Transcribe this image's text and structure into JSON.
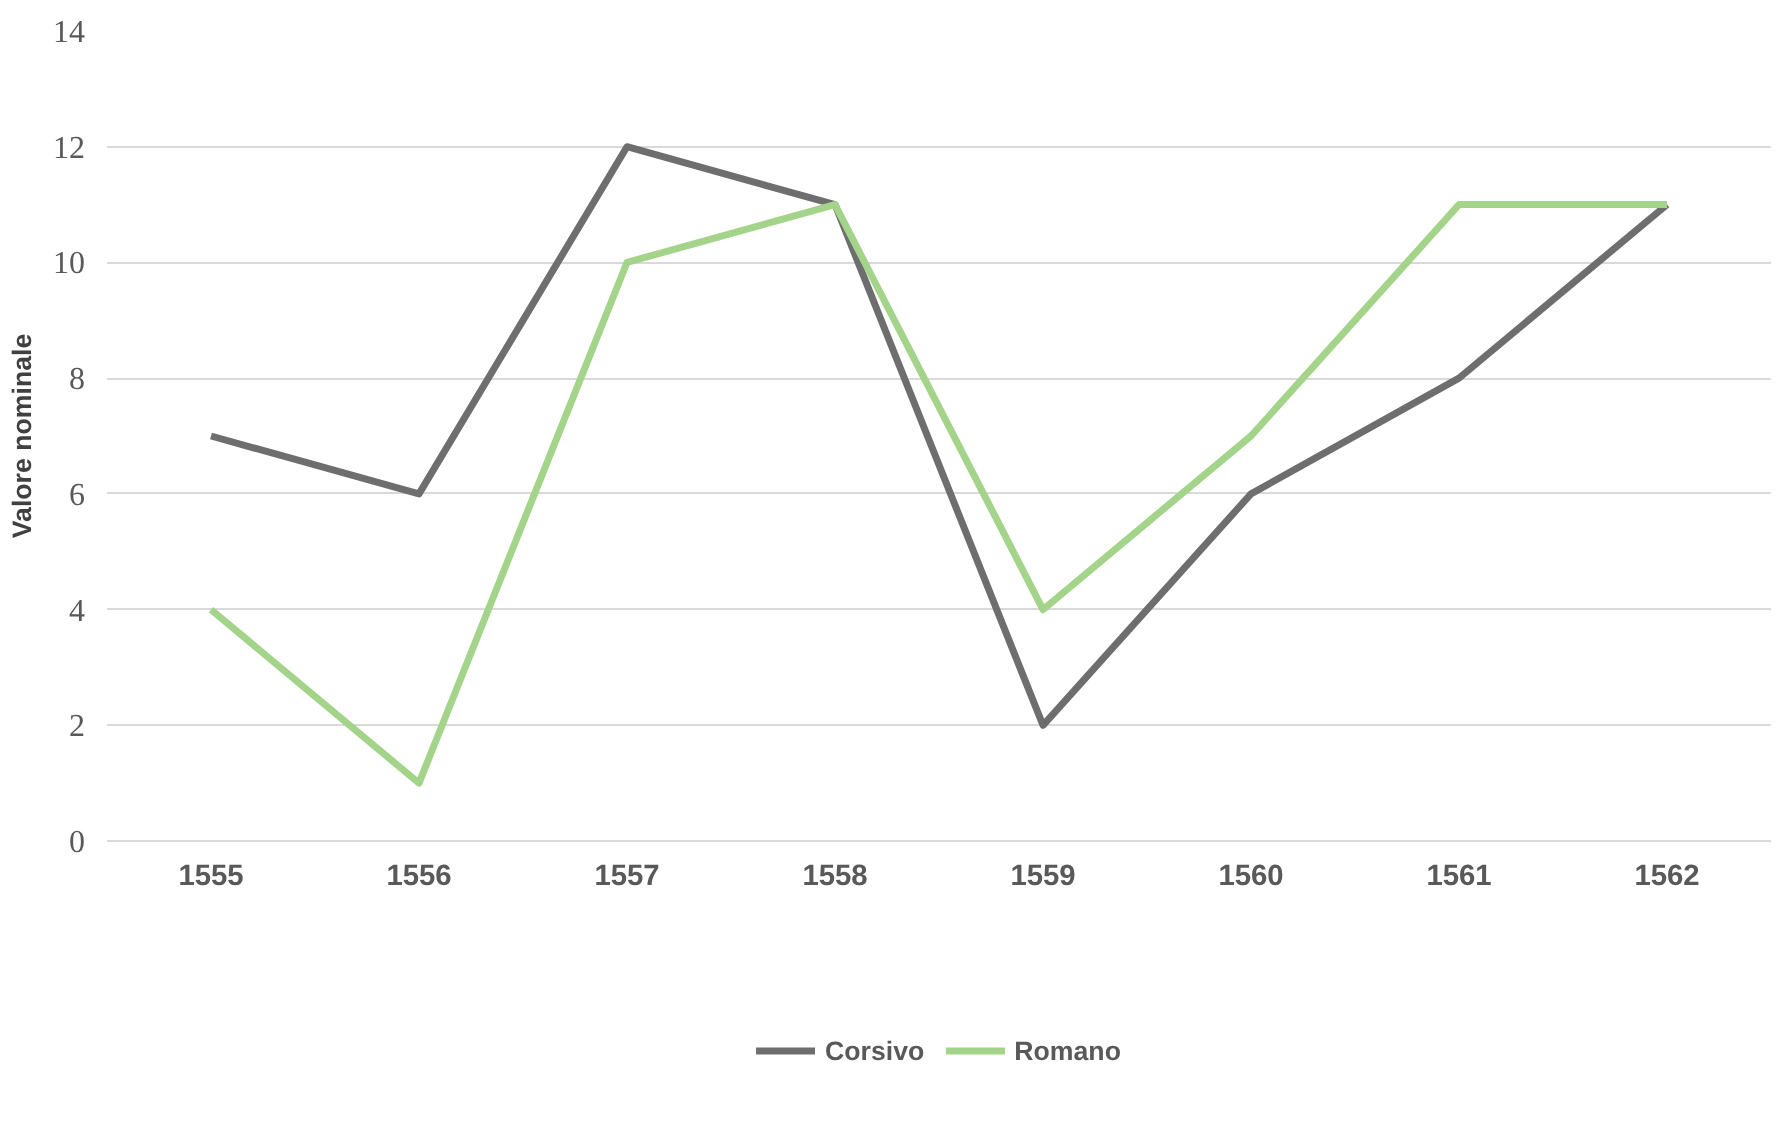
{
  "chart_data": {
    "type": "line",
    "ylabel": "Valore nominale",
    "categories": [
      "1555",
      "1556",
      "1557",
      "1558",
      "1559",
      "1560",
      "1561",
      "1562"
    ],
    "series": [
      {
        "name": "Corsivo",
        "color": "#6e6e6e",
        "values": [
          7,
          6,
          12,
          11,
          2,
          6,
          8,
          11
        ]
      },
      {
        "name": "Romano",
        "color": "#a3d48a",
        "values": [
          4,
          1,
          10,
          11,
          4,
          7,
          11,
          11
        ]
      }
    ],
    "ylim": [
      0,
      14
    ],
    "yticks": [
      0,
      2,
      4,
      6,
      8,
      10,
      12,
      14
    ],
    "grid": "y",
    "legend": "bottom",
    "marker": "none",
    "line_style": "solid"
  }
}
